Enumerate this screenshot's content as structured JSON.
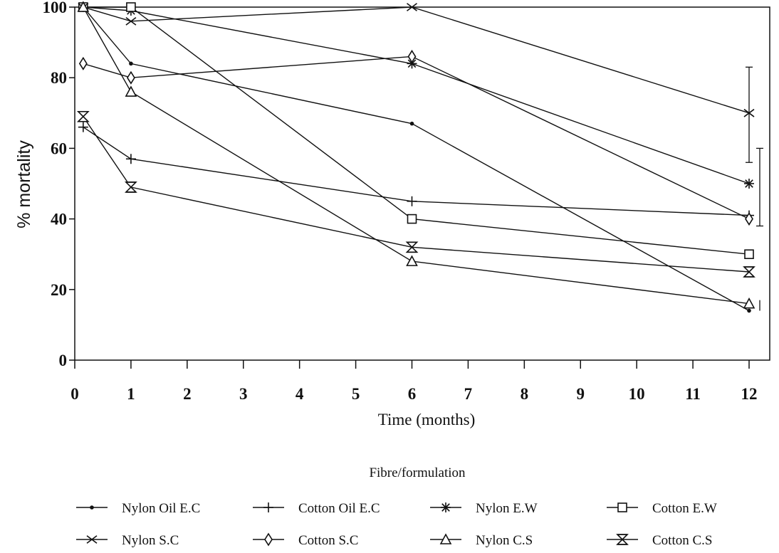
{
  "chart_data": {
    "type": "line",
    "xlabel": "Time (months)",
    "ylabel": "% mortality",
    "xlim": [
      0,
      12
    ],
    "ylim": [
      0,
      100
    ],
    "xticks": [
      0,
      1,
      2,
      3,
      4,
      5,
      6,
      7,
      8,
      9,
      10,
      11,
      12
    ],
    "yticks": [
      0,
      20,
      40,
      60,
      80,
      100
    ],
    "legend_title": "Fibre/formulation",
    "legend_position": "bottom",
    "grid": false,
    "series": [
      {
        "name": "Nylon Oil E.C",
        "marker": "dot",
        "x": [
          0.15,
          1,
          6,
          12
        ],
        "y": [
          100,
          84,
          67,
          14
        ]
      },
      {
        "name": "Cotton Oil E.C",
        "marker": "plus",
        "x": [
          0.15,
          1,
          6,
          12
        ],
        "y": [
          66,
          57,
          45,
          41
        ]
      },
      {
        "name": "Nylon E.W",
        "marker": "star",
        "x": [
          0.15,
          1,
          6,
          12
        ],
        "y": [
          100,
          99,
          84,
          50
        ]
      },
      {
        "name": "Cotton E.W",
        "marker": "square",
        "x": [
          0.15,
          1,
          6,
          12
        ],
        "y": [
          100,
          100,
          40,
          30
        ]
      },
      {
        "name": "Nylon S.C",
        "marker": "x",
        "x": [
          0.15,
          1,
          6,
          12
        ],
        "y": [
          100,
          96,
          100,
          70
        ]
      },
      {
        "name": "Cotton S.C",
        "marker": "diamond",
        "x": [
          0.15,
          1,
          6,
          12
        ],
        "y": [
          84,
          80,
          86,
          40
        ]
      },
      {
        "name": "Nylon C.S",
        "marker": "triangle",
        "x": [
          0.15,
          1,
          6,
          12
        ],
        "y": [
          100,
          76,
          28,
          16
        ]
      },
      {
        "name": "Cotton C.S",
        "marker": "hourglass",
        "x": [
          0.15,
          1,
          6,
          12
        ],
        "y": [
          69,
          49,
          32,
          25
        ]
      }
    ],
    "error_bars": [
      {
        "x": 12,
        "low": 56,
        "high": 83
      },
      {
        "x": 12,
        "low": 38,
        "high": 60
      },
      {
        "x": 12,
        "low": 14,
        "high": 17
      }
    ]
  }
}
